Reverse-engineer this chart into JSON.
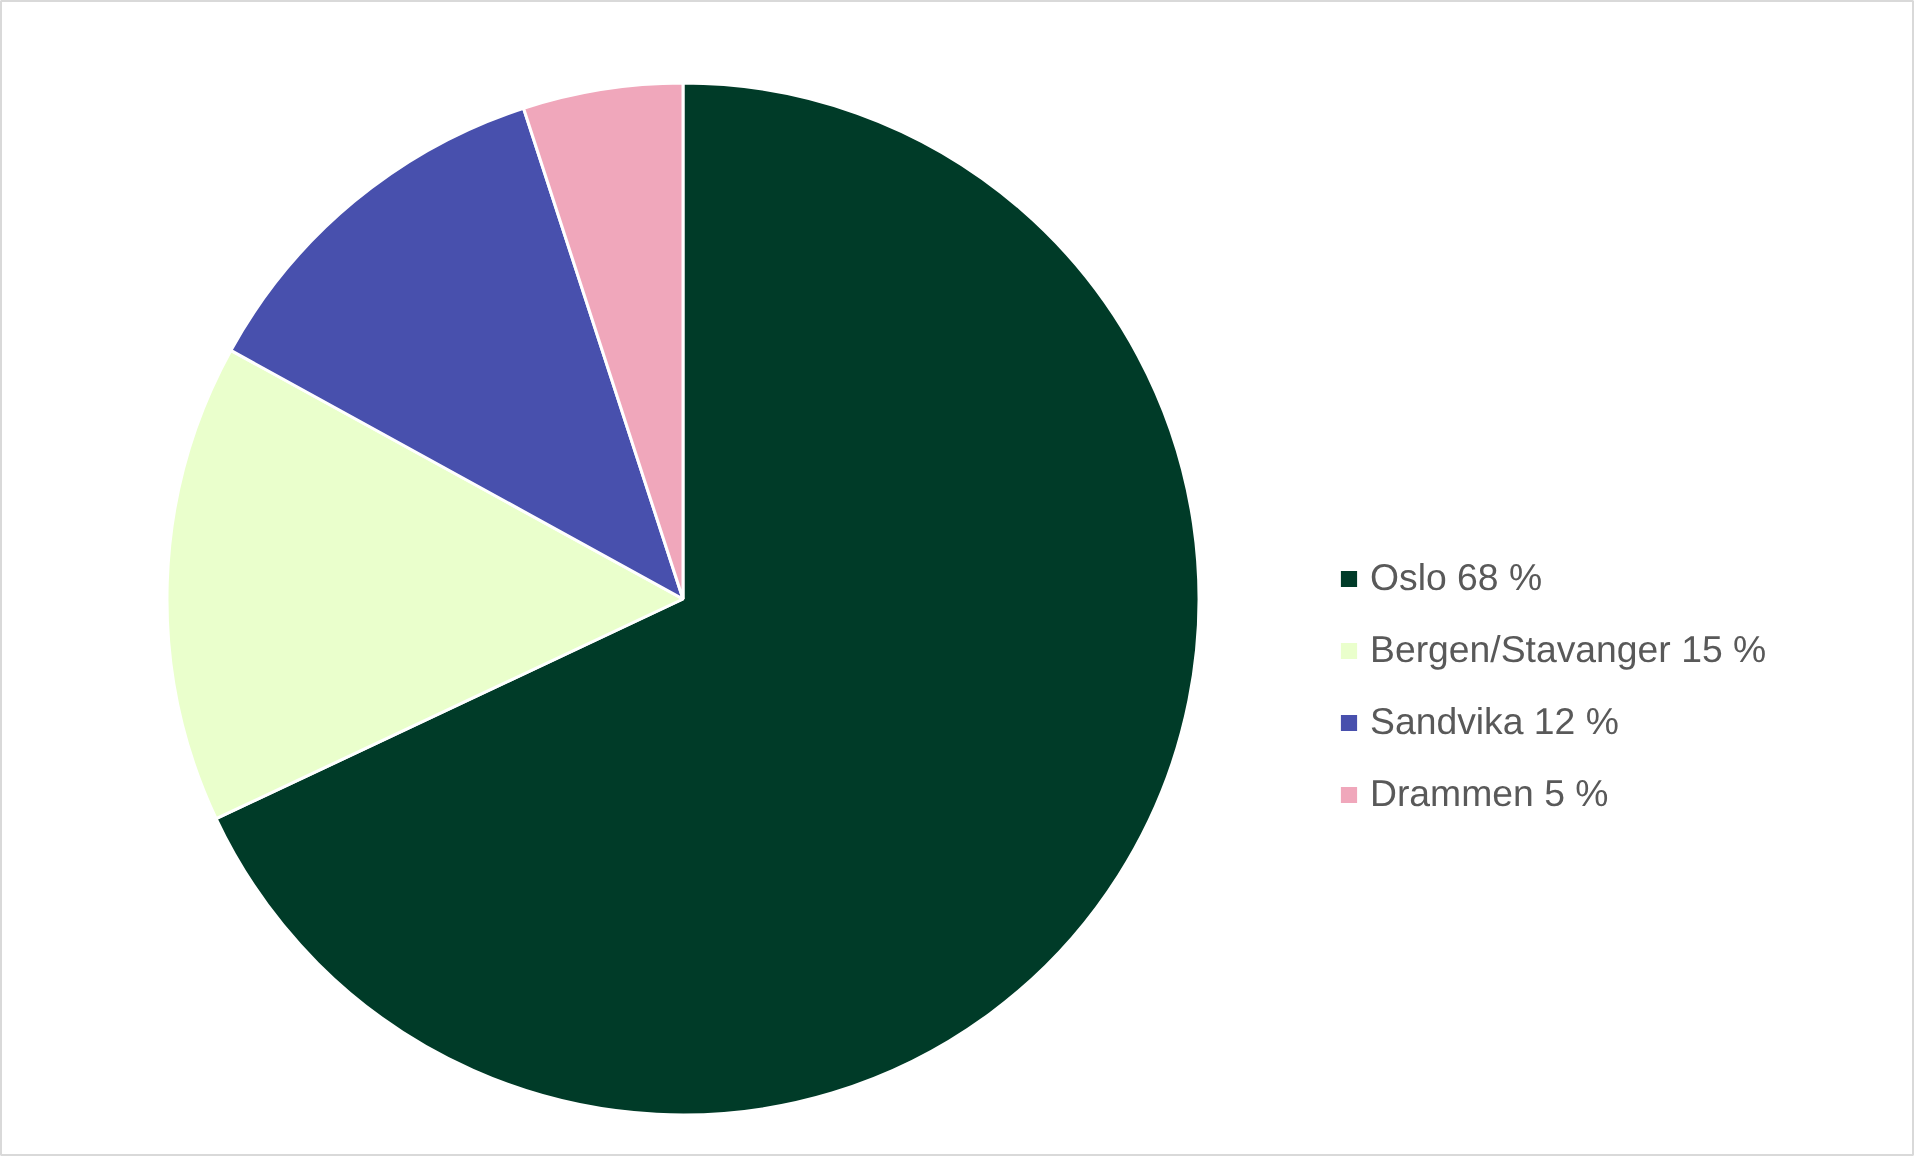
{
  "chart_data": {
    "type": "pie",
    "categories": [
      "Oslo 68 %",
      "Bergen/Stavanger 15 %",
      "Sandvika 12 %",
      "Drammen 5 %"
    ],
    "values": [
      68,
      15,
      12,
      5
    ],
    "colors": [
      "#003b28",
      "#eaffcc",
      "#4850ad",
      "#f0a7bb"
    ],
    "legend": "right"
  }
}
